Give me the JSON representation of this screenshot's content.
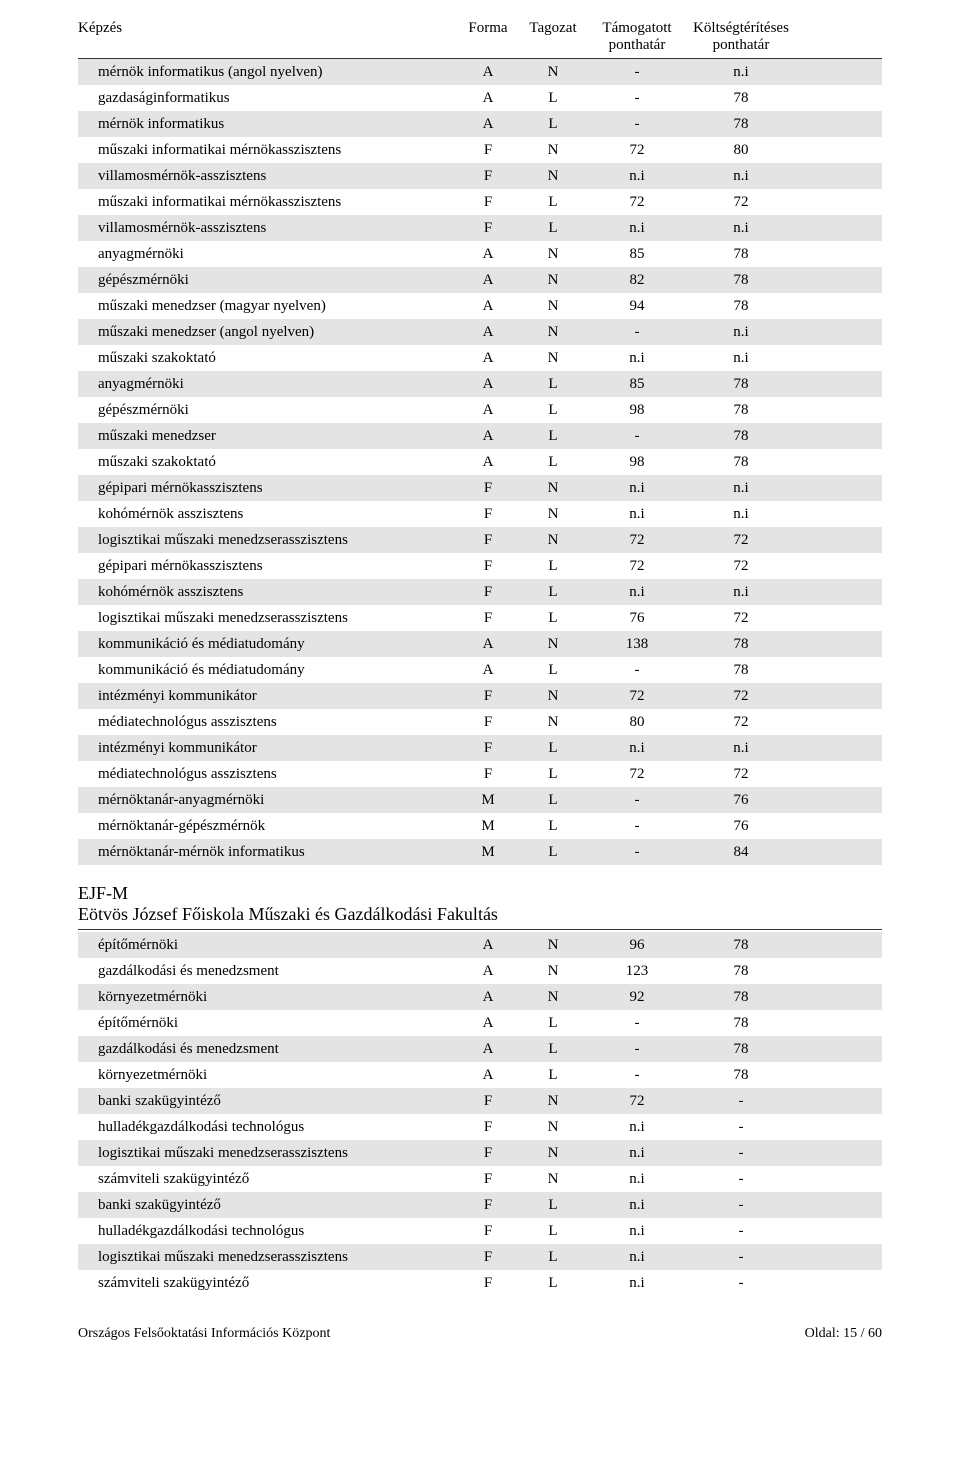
{
  "header": {
    "col_kepzes": "Képzés",
    "col_forma": "Forma",
    "col_tagozat": "Tagozat",
    "col_tamogatott": "Támogatott ponthatár",
    "col_koltseg": "Költségtérítéses ponthatár"
  },
  "rows1": [
    {
      "k": "mérnök informatikus (angol nyelven)",
      "f": "A",
      "t": "N",
      "ta": "-",
      "ko": "n.i"
    },
    {
      "k": "gazdaságinformatikus",
      "f": "A",
      "t": "L",
      "ta": "-",
      "ko": "78"
    },
    {
      "k": "mérnök informatikus",
      "f": "A",
      "t": "L",
      "ta": "-",
      "ko": "78"
    },
    {
      "k": "műszaki informatikai mérnökasszisztens",
      "f": "F",
      "t": "N",
      "ta": "72",
      "ko": "80"
    },
    {
      "k": "villamosmérnök-asszisztens",
      "f": "F",
      "t": "N",
      "ta": "n.i",
      "ko": "n.i"
    },
    {
      "k": "műszaki informatikai mérnökasszisztens",
      "f": "F",
      "t": "L",
      "ta": "72",
      "ko": "72"
    },
    {
      "k": "villamosmérnök-asszisztens",
      "f": "F",
      "t": "L",
      "ta": "n.i",
      "ko": "n.i"
    },
    {
      "k": "anyagmérnöki",
      "f": "A",
      "t": "N",
      "ta": "85",
      "ko": "78"
    },
    {
      "k": "gépészmérnöki",
      "f": "A",
      "t": "N",
      "ta": "82",
      "ko": "78"
    },
    {
      "k": "műszaki menedzser (magyar nyelven)",
      "f": "A",
      "t": "N",
      "ta": "94",
      "ko": "78"
    },
    {
      "k": "műszaki menedzser (angol nyelven)",
      "f": "A",
      "t": "N",
      "ta": "-",
      "ko": "n.i"
    },
    {
      "k": "műszaki szakoktató",
      "f": "A",
      "t": "N",
      "ta": "n.i",
      "ko": "n.i"
    },
    {
      "k": "anyagmérnöki",
      "f": "A",
      "t": "L",
      "ta": "85",
      "ko": "78"
    },
    {
      "k": "gépészmérnöki",
      "f": "A",
      "t": "L",
      "ta": "98",
      "ko": "78"
    },
    {
      "k": "műszaki menedzser",
      "f": "A",
      "t": "L",
      "ta": "-",
      "ko": "78"
    },
    {
      "k": "műszaki szakoktató",
      "f": "A",
      "t": "L",
      "ta": "98",
      "ko": "78"
    },
    {
      "k": "gépipari mérnökasszisztens",
      "f": "F",
      "t": "N",
      "ta": "n.i",
      "ko": "n.i"
    },
    {
      "k": "kohómérnök asszisztens",
      "f": "F",
      "t": "N",
      "ta": "n.i",
      "ko": "n.i"
    },
    {
      "k": "logisztikai műszaki menedzserasszisztens",
      "f": "F",
      "t": "N",
      "ta": "72",
      "ko": "72"
    },
    {
      "k": "gépipari mérnökasszisztens",
      "f": "F",
      "t": "L",
      "ta": "72",
      "ko": "72"
    },
    {
      "k": "kohómérnök asszisztens",
      "f": "F",
      "t": "L",
      "ta": "n.i",
      "ko": "n.i"
    },
    {
      "k": "logisztikai műszaki menedzserasszisztens",
      "f": "F",
      "t": "L",
      "ta": "76",
      "ko": "72"
    },
    {
      "k": "kommunikáció és médiatudomány",
      "f": "A",
      "t": "N",
      "ta": "138",
      "ko": "78"
    },
    {
      "k": "kommunikáció és médiatudomány",
      "f": "A",
      "t": "L",
      "ta": "-",
      "ko": "78"
    },
    {
      "k": "intézményi kommunikátor",
      "f": "F",
      "t": "N",
      "ta": "72",
      "ko": "72"
    },
    {
      "k": "médiatechnológus asszisztens",
      "f": "F",
      "t": "N",
      "ta": "80",
      "ko": "72"
    },
    {
      "k": "intézményi kommunikátor",
      "f": "F",
      "t": "L",
      "ta": "n.i",
      "ko": "n.i"
    },
    {
      "k": "médiatechnológus asszisztens",
      "f": "F",
      "t": "L",
      "ta": "72",
      "ko": "72"
    },
    {
      "k": "mérnöktanár-anyagmérnöki",
      "f": "M",
      "t": "L",
      "ta": "-",
      "ko": "76"
    },
    {
      "k": "mérnöktanár-gépészmérnök",
      "f": "M",
      "t": "L",
      "ta": "-",
      "ko": "76"
    },
    {
      "k": "mérnöktanár-mérnök informatikus",
      "f": "M",
      "t": "L",
      "ta": "-",
      "ko": "84"
    }
  ],
  "section": {
    "code": "EJF-M",
    "fullname": "Eötvös József Főiskola Műszaki és Gazdálkodási Fakultás"
  },
  "rows2": [
    {
      "k": "építőmérnöki",
      "f": "A",
      "t": "N",
      "ta": "96",
      "ko": "78"
    },
    {
      "k": "gazdálkodási és menedzsment",
      "f": "A",
      "t": "N",
      "ta": "123",
      "ko": "78"
    },
    {
      "k": "környezetmérnöki",
      "f": "A",
      "t": "N",
      "ta": "92",
      "ko": "78"
    },
    {
      "k": "építőmérnöki",
      "f": "A",
      "t": "L",
      "ta": "-",
      "ko": "78"
    },
    {
      "k": "gazdálkodási és menedzsment",
      "f": "A",
      "t": "L",
      "ta": "-",
      "ko": "78"
    },
    {
      "k": "környezetmérnöki",
      "f": "A",
      "t": "L",
      "ta": "-",
      "ko": "78"
    },
    {
      "k": "banki szakügyintéző",
      "f": "F",
      "t": "N",
      "ta": "72",
      "ko": "-"
    },
    {
      "k": "hulladékgazdálkodási technológus",
      "f": "F",
      "t": "N",
      "ta": "n.i",
      "ko": "-"
    },
    {
      "k": "logisztikai műszaki menedzserasszisztens",
      "f": "F",
      "t": "N",
      "ta": "n.i",
      "ko": "-"
    },
    {
      "k": "számviteli szakügyintéző",
      "f": "F",
      "t": "N",
      "ta": "n.i",
      "ko": "-"
    },
    {
      "k": "banki szakügyintéző",
      "f": "F",
      "t": "L",
      "ta": "n.i",
      "ko": "-"
    },
    {
      "k": "hulladékgazdálkodási technológus",
      "f": "F",
      "t": "L",
      "ta": "n.i",
      "ko": "-"
    },
    {
      "k": "logisztikai műszaki menedzserasszisztens",
      "f": "F",
      "t": "L",
      "ta": "n.i",
      "ko": "-"
    },
    {
      "k": "számviteli szakügyintéző",
      "f": "F",
      "t": "L",
      "ta": "n.i",
      "ko": "-"
    }
  ],
  "footer": {
    "left": "Országos Felsőoktatási Információs Központ",
    "right": "Oldal: 15 / 60"
  },
  "style": {
    "alt_row_bg": "#e4e4e4",
    "text_color": "#000000",
    "border_color": "#333333",
    "font_family": "Times New Roman"
  }
}
